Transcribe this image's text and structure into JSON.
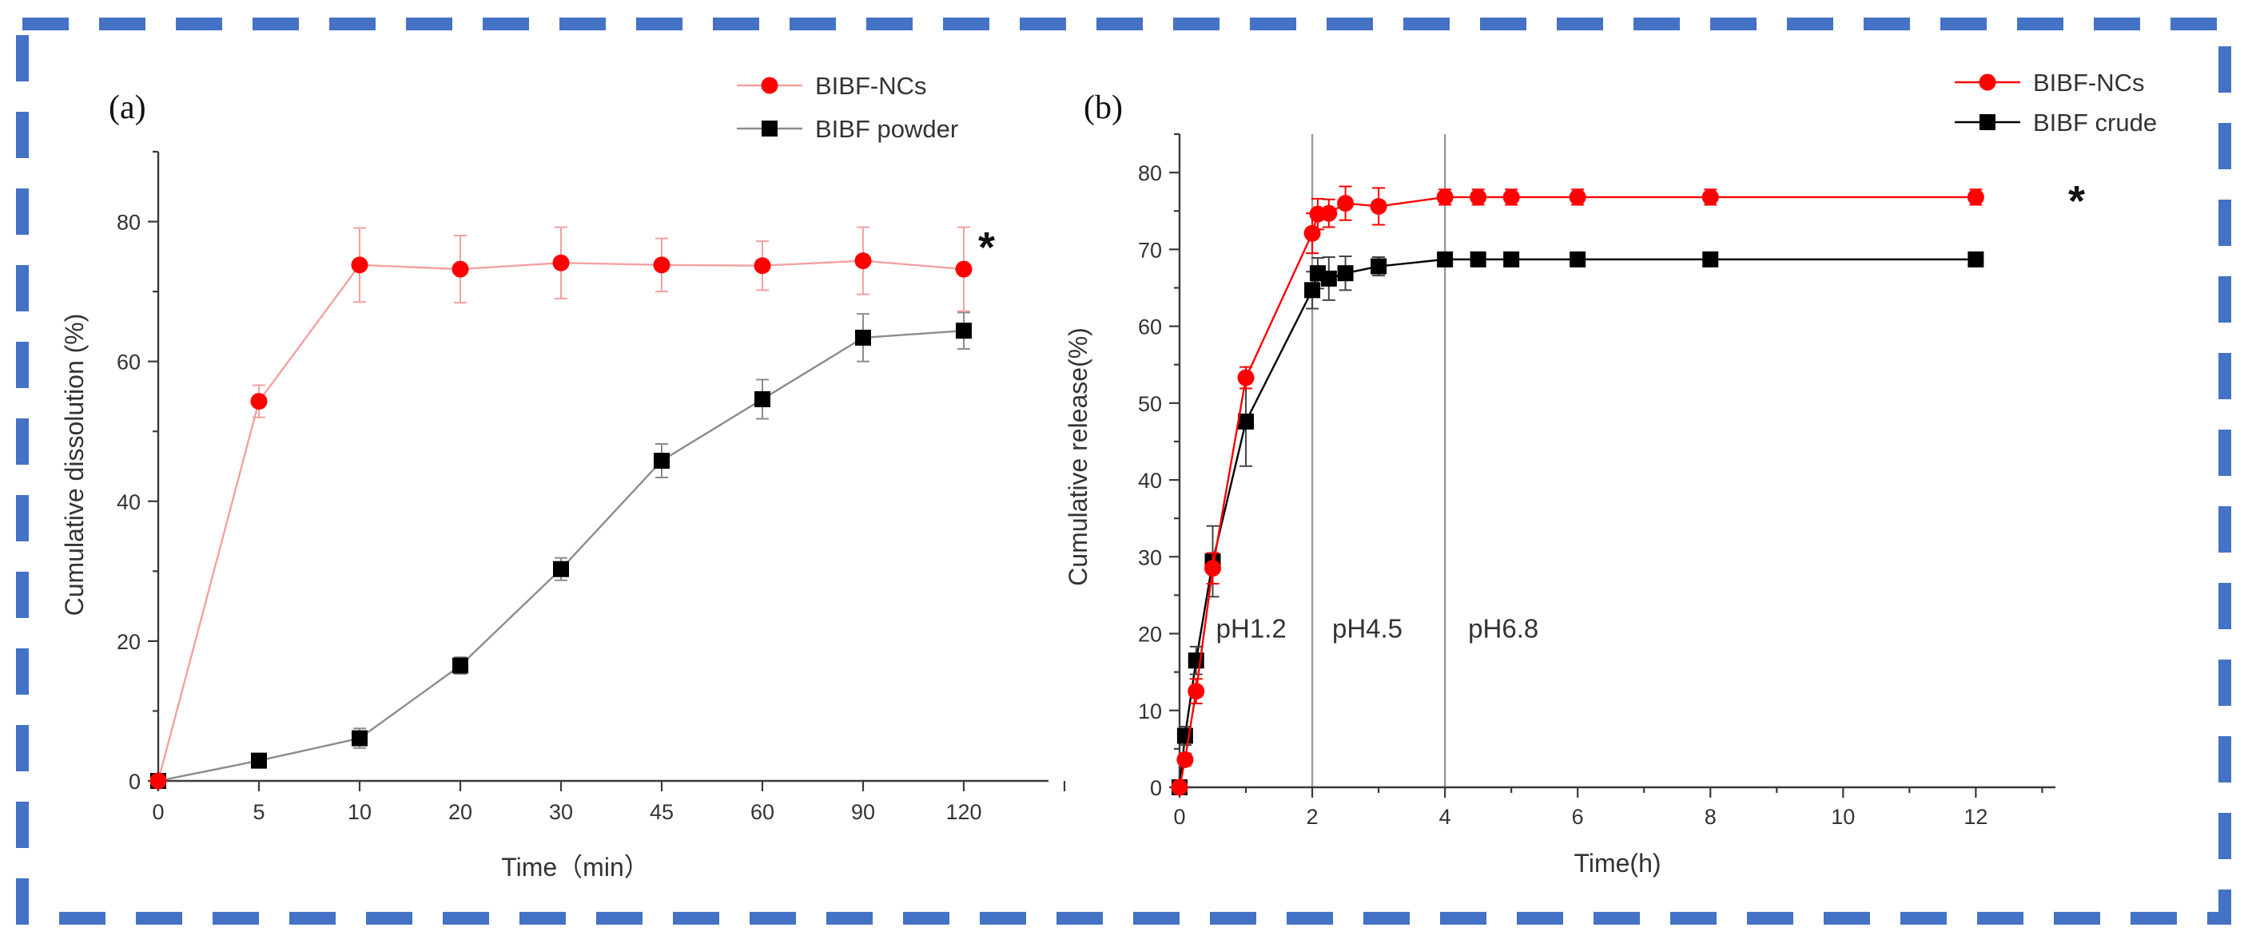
{
  "colors": {
    "frame": "#4472C4",
    "red": "#FF0000",
    "red_light": "#F4A0A0",
    "black": "#000000",
    "gray_line": "#8C8C8C"
  },
  "chart_data": [
    {
      "panel": "(a)",
      "type": "line",
      "xlabel": "Time（min）",
      "ylabel": "Cumulative dissolution (%)",
      "categories": [
        "0",
        "5",
        "10",
        "20",
        "30",
        "45",
        "60",
        "90",
        "120"
      ],
      "ylim": [
        0,
        90
      ],
      "yticks": [
        "0",
        "20",
        "40",
        "60",
        "80"
      ],
      "ytick_values": [
        0,
        20,
        40,
        60,
        80
      ],
      "legend": [
        "BIBF-NCs",
        "BIBF powder"
      ],
      "legend_position": "top-right",
      "significance_mark": "*",
      "series": [
        {
          "name": "BIBF-NCs",
          "values": [
            0,
            54.3,
            73.8,
            73.2,
            74.1,
            73.8,
            73.7,
            74.4,
            73.2
          ],
          "errors": [
            0,
            2.3,
            5.3,
            4.8,
            5.1,
            3.8,
            3.5,
            4.8,
            6.0
          ]
        },
        {
          "name": "BIBF powder",
          "values": [
            0,
            2.9,
            6.1,
            16.5,
            30.3,
            45.8,
            54.6,
            63.4,
            64.4
          ],
          "errors": [
            0,
            0.9,
            1.4,
            1.2,
            1.6,
            2.4,
            2.8,
            3.4,
            2.6
          ]
        }
      ]
    },
    {
      "panel": "(b)",
      "type": "line",
      "xlabel": "Time(h)",
      "ylabel": "Cumulative release(%)",
      "xlim": [
        0,
        13.2
      ],
      "ylim": [
        0,
        85
      ],
      "xticks": [
        "0",
        "2",
        "4",
        "6",
        "8",
        "10",
        "12"
      ],
      "xtick_values": [
        0,
        2,
        4,
        6,
        8,
        10,
        12
      ],
      "yticks": [
        "0",
        "10",
        "20",
        "30",
        "40",
        "50",
        "60",
        "70",
        "80"
      ],
      "ytick_values": [
        0,
        10,
        20,
        30,
        40,
        50,
        60,
        70,
        80
      ],
      "legend": [
        "BIBF-NCs",
        "BIBF crude"
      ],
      "legend_position": "top-right",
      "significance_mark": "*",
      "phase_boundaries": [
        2,
        4
      ],
      "phase_labels": [
        {
          "text": "pH1.2",
          "x": 0.55,
          "y": 19.5
        },
        {
          "text": "pH4.5",
          "x": 2.3,
          "y": 19.5
        },
        {
          "text": "pH6.8",
          "x": 4.35,
          "y": 19.5
        }
      ],
      "series": [
        {
          "name": "BIBF-NCs",
          "x": [
            0,
            0.083,
            0.25,
            0.5,
            1,
            2,
            2.083,
            2.25,
            2.5,
            3,
            4,
            4.5,
            5,
            6,
            8,
            12
          ],
          "values": [
            0,
            3.6,
            12.5,
            28.5,
            53.3,
            72.1,
            74.6,
            74.7,
            76.0,
            75.6,
            76.8,
            76.8,
            76.8,
            76.8,
            76.8,
            76.8
          ],
          "errors": [
            0,
            0.8,
            1.6,
            2.0,
            1.4,
            2.6,
            2.0,
            1.8,
            2.2,
            2.4,
            1.0,
            1.0,
            1.0,
            1.0,
            1.0,
            1.0
          ]
        },
        {
          "name": "BIBF crude",
          "x": [
            0,
            0.083,
            0.25,
            0.5,
            1,
            2,
            2.083,
            2.25,
            2.5,
            3,
            4,
            4.5,
            5,
            6,
            8,
            12
          ],
          "values": [
            0,
            6.7,
            16.5,
            29.4,
            47.6,
            64.7,
            66.9,
            66.2,
            66.9,
            67.8,
            68.7,
            68.7,
            68.7,
            68.7,
            68.7,
            68.7
          ],
          "errors": [
            0,
            1.2,
            1.8,
            4.6,
            5.8,
            2.4,
            2.0,
            2.8,
            2.2,
            1.2,
            0.5,
            0.5,
            0.5,
            0.5,
            0.5,
            0.5
          ]
        }
      ]
    }
  ]
}
